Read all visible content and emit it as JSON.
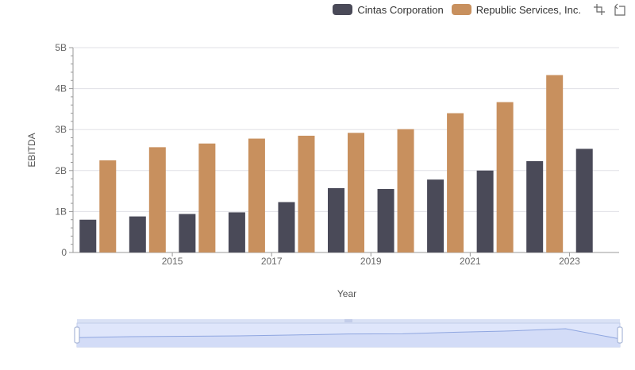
{
  "legend": {
    "items": [
      {
        "label": "Cintas Corporation",
        "color": "#4a4a58"
      },
      {
        "label": "Republic Services, Inc.",
        "color": "#c8905e"
      }
    ]
  },
  "toolbox": {
    "icons": [
      "zoom-icon",
      "zoom-reset-icon"
    ]
  },
  "chart_data": {
    "type": "bar",
    "x": [
      2014,
      2015,
      2016,
      2017,
      2018,
      2019,
      2020,
      2021,
      2022,
      2023,
      2024
    ],
    "xticks": [
      2015,
      2017,
      2019,
      2021,
      2023
    ],
    "xlabel": "Year",
    "ylabel": "EBITDA",
    "ylim": [
      0,
      5000000000
    ],
    "yticks": [
      0,
      1000000000,
      2000000000,
      3000000000,
      4000000000,
      5000000000
    ],
    "ytick_labels": [
      "0",
      "1B",
      "2B",
      "3B",
      "4B",
      "5B"
    ],
    "grid": true,
    "legend_position": "top-right",
    "series": [
      {
        "name": "Cintas Corporation",
        "color": "#4a4a58",
        "values": [
          800000000,
          880000000,
          940000000,
          980000000,
          1230000000,
          1570000000,
          1550000000,
          1780000000,
          2000000000,
          2230000000,
          2530000000
        ]
      },
      {
        "name": "Republic Services, Inc.",
        "color": "#c8905e",
        "values": [
          2250000000,
          2570000000,
          2660000000,
          2780000000,
          2850000000,
          2920000000,
          3010000000,
          3400000000,
          3670000000,
          4330000000,
          null
        ]
      }
    ],
    "datazoom": {
      "start_percent": 0,
      "end_percent": 100
    }
  }
}
